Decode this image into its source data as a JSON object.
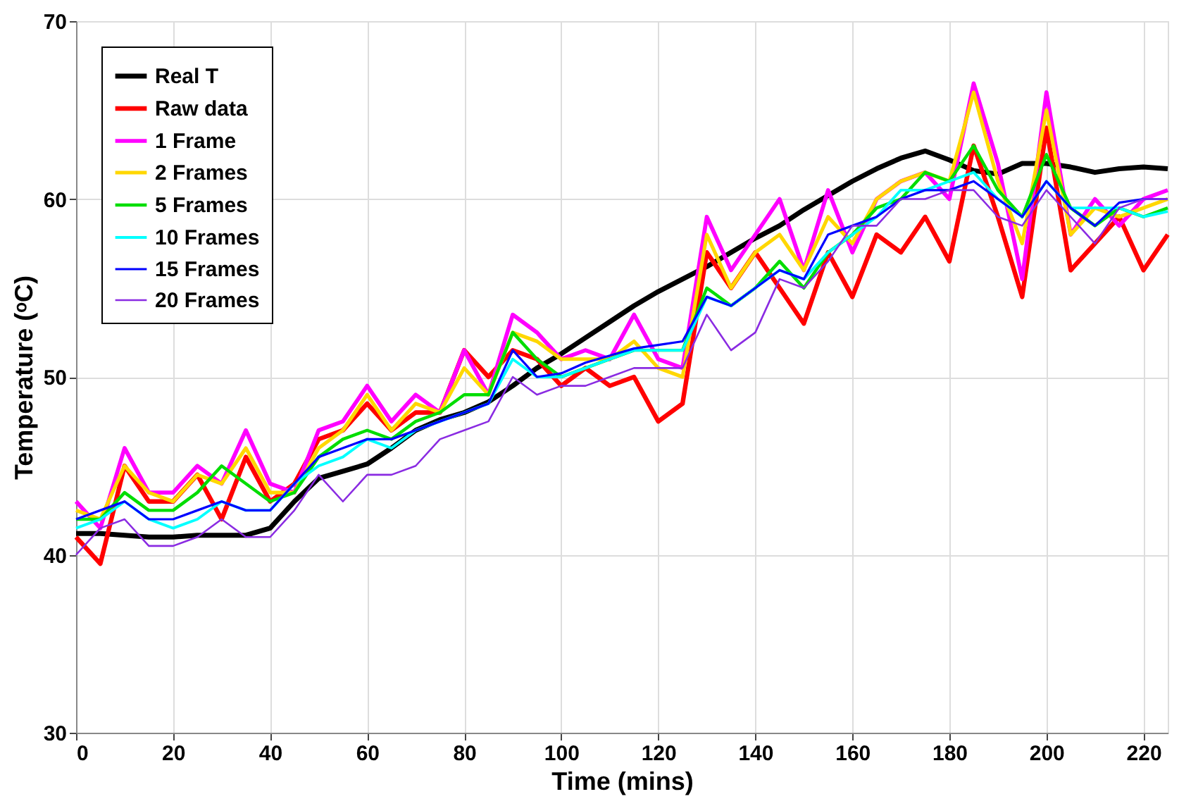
{
  "chart_data": {
    "type": "line",
    "xlabel": "Time (mins)",
    "ylabel": "Temperature (ᵒC)",
    "x": [
      0,
      5,
      10,
      15,
      20,
      25,
      30,
      35,
      40,
      45,
      50,
      55,
      60,
      65,
      70,
      75,
      80,
      85,
      90,
      95,
      100,
      105,
      110,
      115,
      120,
      125,
      130,
      135,
      140,
      145,
      150,
      155,
      160,
      165,
      170,
      175,
      180,
      185,
      190,
      195,
      200,
      205,
      210,
      215,
      220,
      225
    ],
    "xlim": [
      0,
      225
    ],
    "xticks": [
      0,
      20,
      40,
      60,
      80,
      100,
      120,
      140,
      160,
      180,
      200,
      220
    ],
    "ylim": [
      30,
      70
    ],
    "yticks": [
      30,
      40,
      50,
      60,
      70
    ],
    "grid": true,
    "legend": "top left",
    "marker": "none",
    "line_style": "solid",
    "series": [
      {
        "name": "Real T",
        "color": "#000000",
        "values": [
          41.2,
          41.2,
          41.1,
          41,
          41,
          41.1,
          41.1,
          41.1,
          41.5,
          43,
          44.3,
          44.7,
          45.1,
          46,
          47,
          47.6,
          48,
          48.6,
          49.5,
          50.5,
          51.3,
          52.2,
          53.1,
          54,
          54.8,
          55.5,
          56.2,
          57,
          57.8,
          58.5,
          59.4,
          60.2,
          61,
          61.7,
          62.3,
          62.7,
          62.2,
          61.6,
          61.4,
          62,
          62,
          61.8,
          61.5,
          61.7,
          61.8,
          61.7
        ]
      },
      {
        "name": "Raw data",
        "color": "#ff0000",
        "values": [
          41,
          39.5,
          45,
          43,
          43,
          44.5,
          42,
          45.5,
          43,
          44,
          46.5,
          47,
          48.5,
          47,
          48,
          48,
          51.5,
          50,
          51.5,
          51,
          49.5,
          50.5,
          49.5,
          50,
          47.5,
          48.5,
          57,
          55,
          57,
          55,
          53,
          57,
          54.5,
          58,
          57,
          59,
          56.5,
          63,
          59,
          54.5,
          64,
          56,
          57.5,
          59,
          56,
          58
        ]
      },
      {
        "name": "1 Frame",
        "color": "#ff00ff",
        "values": [
          43,
          41.5,
          46,
          43.5,
          43.5,
          45,
          44,
          47,
          44,
          43.5,
          47,
          47.5,
          49.5,
          47.5,
          49,
          48,
          51.5,
          49,
          53.5,
          52.5,
          51,
          51.5,
          51,
          53.5,
          51,
          50.5,
          59,
          56,
          58,
          60,
          56,
          60.5,
          57,
          60,
          61,
          61.5,
          60,
          66.5,
          62,
          55.5,
          66,
          58,
          60,
          58.5,
          60,
          60.5
        ]
      },
      {
        "name": "2 Frames",
        "color": "#ffd700",
        "values": [
          42.5,
          42,
          45,
          43.5,
          43,
          44.5,
          44,
          46,
          43.5,
          43.5,
          46,
          47,
          49,
          47,
          48.5,
          48,
          50.5,
          49,
          52.5,
          52,
          51,
          51,
          51,
          52,
          50.5,
          50,
          58,
          55,
          57,
          58,
          56,
          59,
          57.5,
          60,
          61,
          61.5,
          61,
          66,
          61,
          57.5,
          65,
          58,
          59.5,
          59,
          59.5,
          60
        ]
      },
      {
        "name": "5 Frames",
        "color": "#00dd00",
        "values": [
          42,
          42,
          43.5,
          42.5,
          42.5,
          43.5,
          45,
          44,
          43,
          43.5,
          45.5,
          46.5,
          47,
          46.5,
          47.5,
          48,
          49,
          49,
          52.5,
          51,
          50,
          50.5,
          51,
          51.5,
          51.5,
          51.5,
          55,
          54,
          55,
          56.5,
          55,
          57,
          58,
          59.5,
          60,
          61.5,
          61,
          63,
          60.5,
          59,
          62.5,
          59.5,
          58.5,
          59.5,
          59,
          59.5
        ]
      },
      {
        "name": "10 Frames",
        "color": "#00ffff",
        "values": [
          41.5,
          42,
          43,
          42,
          41.5,
          42,
          43,
          42.5,
          42.5,
          44,
          45,
          45.5,
          46.5,
          46,
          47,
          47.5,
          48,
          48.5,
          51,
          50,
          50,
          50.5,
          51,
          51.5,
          51.5,
          51.5,
          54.5,
          54,
          55,
          56,
          55.5,
          57,
          58,
          59,
          60.5,
          60.5,
          61,
          61.5,
          60,
          59,
          61,
          59.5,
          59.5,
          59.5,
          59,
          59.3
        ]
      },
      {
        "name": "15 Frames",
        "color": "#0000ff",
        "values": [
          42,
          42.5,
          43,
          42,
          42,
          42.5,
          43,
          42.5,
          42.5,
          44,
          45.5,
          46,
          46.5,
          46.5,
          47,
          47.5,
          48,
          48.5,
          51.5,
          50,
          50.2,
          50.8,
          51.2,
          51.6,
          51.8,
          52,
          54.5,
          54,
          55,
          56,
          55.5,
          58,
          58.5,
          59,
          60,
          60.5,
          60.5,
          61,
          60,
          59,
          61,
          59.5,
          58.5,
          59.8,
          60,
          60
        ]
      },
      {
        "name": "20 Frames",
        "color": "#8a2be2",
        "values": [
          40,
          41.5,
          42,
          40.5,
          40.5,
          41,
          42,
          41,
          41,
          42.5,
          44.5,
          43,
          44.5,
          44.5,
          45,
          46.5,
          47,
          47.5,
          50,
          49,
          49.5,
          49.5,
          50,
          50.5,
          50.5,
          50.5,
          53.5,
          51.5,
          52.5,
          55.5,
          55,
          56.5,
          58.5,
          58.5,
          60,
          60,
          60.5,
          60.5,
          59,
          58.5,
          60.5,
          59,
          57.5,
          59.5,
          60,
          60
        ]
      }
    ]
  }
}
